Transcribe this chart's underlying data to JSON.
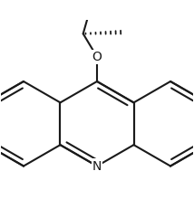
{
  "bg_color": "#ffffff",
  "line_color": "#1a1a1a",
  "line_width": 1.5,
  "font_size": 10,
  "figsize": [
    2.14,
    2.31
  ],
  "dpi": 100
}
